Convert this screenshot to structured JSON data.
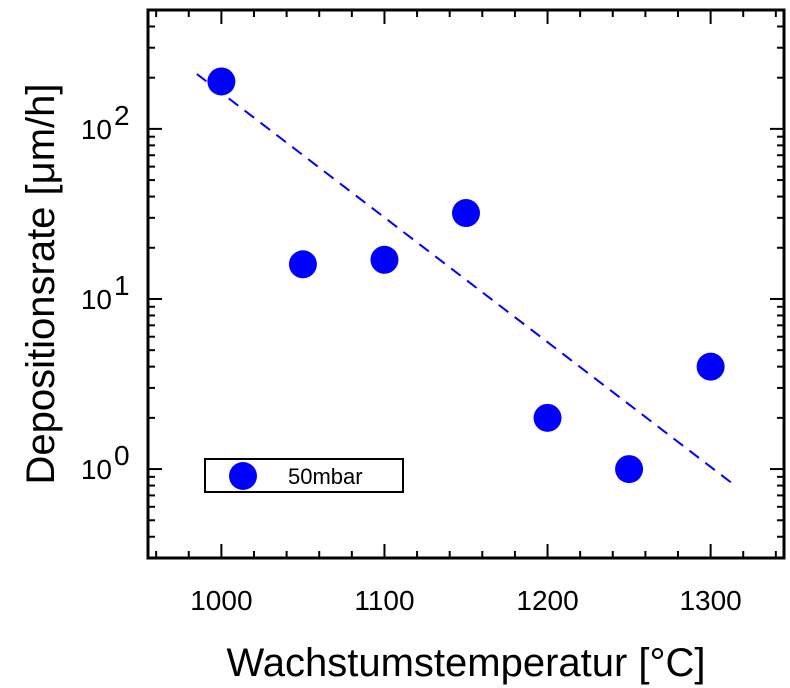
{
  "chart_data": {
    "type": "scatter",
    "xlabel": "Wachstumstemperatur [°C]",
    "ylabel": "Depositionsrate [μm/h]",
    "xlim": [
      955,
      1345
    ],
    "ylim": [
      0.3,
      500
    ],
    "yscale": "log",
    "x_ticks": [
      1000,
      1100,
      1200,
      1300
    ],
    "x_tick_labels": [
      "1000",
      "1100",
      "1200",
      "1300"
    ],
    "y_ticks": [
      {
        "value": 1,
        "base": "10",
        "exp": "0"
      },
      {
        "value": 10,
        "base": "10",
        "exp": "1"
      },
      {
        "value": 100,
        "base": "10",
        "exp": "2"
      }
    ],
    "grid": false,
    "legend_position": "bottom-left",
    "series": [
      {
        "name": "50mbar",
        "color": "#0000ff",
        "marker": "circle",
        "x": [
          1000,
          1050,
          1100,
          1150,
          1200,
          1250,
          1300
        ],
        "y": [
          190,
          16,
          17,
          32,
          2,
          1,
          4
        ]
      }
    ],
    "fit_line": {
      "color": "#0000ff",
      "style": "dashed",
      "x": [
        985,
        1315
      ],
      "y": [
        210,
        0.8
      ]
    }
  }
}
